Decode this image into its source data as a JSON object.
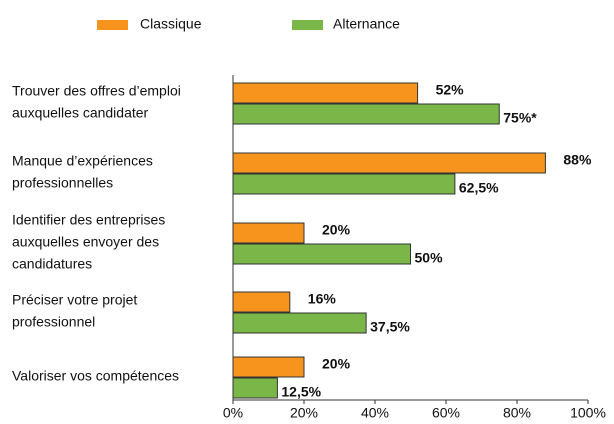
{
  "chart_data": {
    "type": "hbar",
    "categories": [
      [
        "Trouver des offres d’emploi",
        "auxquelles candidater"
      ],
      [
        "Manque d’expériences",
        "professionnelles"
      ],
      [
        "Identifier des entreprises",
        "auxquelles envoyer des",
        "candidatures"
      ],
      [
        "Préciser votre projet",
        "professionnel"
      ],
      [
        "Valoriser vos compétences"
      ]
    ],
    "series": [
      {
        "name": "Classique",
        "color": "#f7941d",
        "values": [
          52,
          88,
          20,
          16,
          20
        ],
        "value_labels": [
          "52%",
          "88%",
          "20%",
          "16%",
          "20%"
        ]
      },
      {
        "name": "Alternance",
        "color": "#7ab648",
        "values": [
          75,
          62.5,
          50,
          37.5,
          12.5
        ],
        "value_labels": [
          "75%*",
          "62,5%",
          "50%",
          "37,5%",
          "12,5%"
        ]
      }
    ],
    "xlim": [
      0,
      100
    ],
    "xticks": [
      {
        "value": 0,
        "label": "0%"
      },
      {
        "value": 20,
        "label": "20%"
      },
      {
        "value": 40,
        "label": "40%"
      },
      {
        "value": 60,
        "label": "60%"
      },
      {
        "value": 80,
        "label": "80%"
      },
      {
        "value": 100,
        "label": "100%"
      }
    ],
    "legend": "top"
  }
}
